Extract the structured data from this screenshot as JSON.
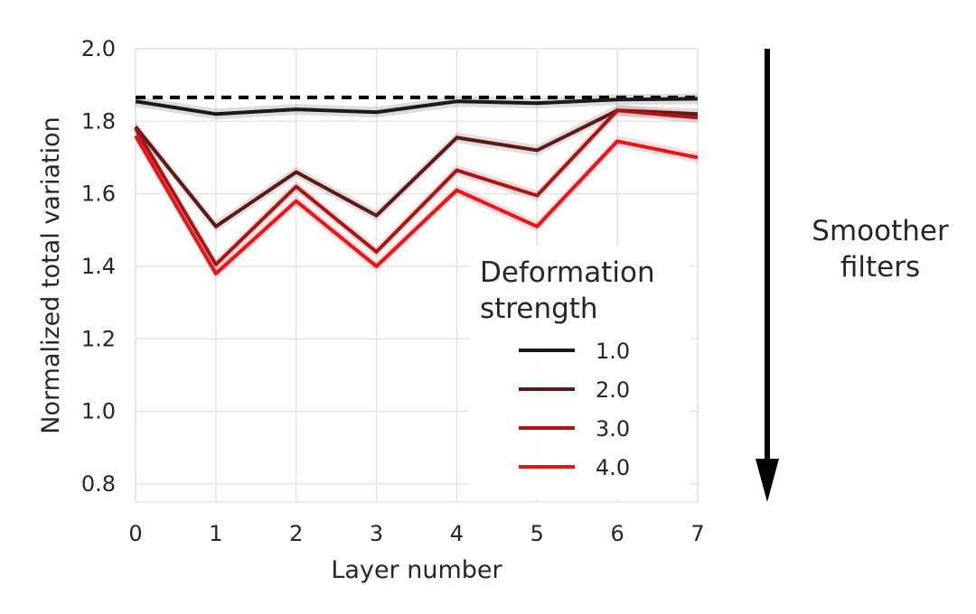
{
  "chart_data": {
    "type": "line",
    "xlabel": "Layer number",
    "ylabel": "Normalized total variation",
    "xlim": [
      0,
      7
    ],
    "ylim": [
      0.75,
      2.0
    ],
    "x_ticks": [
      "0",
      "1",
      "2",
      "3",
      "4",
      "5",
      "6",
      "7"
    ],
    "y_ticks": [
      "0.8",
      "1.0",
      "1.2",
      "1.4",
      "1.6",
      "1.8",
      "2.0"
    ],
    "x": [
      0,
      1,
      2,
      3,
      4,
      5,
      6,
      7
    ],
    "grid": true,
    "legend": {
      "title_lines": [
        "Deformation",
        "strength"
      ],
      "position": "lower-right"
    },
    "reference_line": {
      "y": 1.866,
      "style": "dashed",
      "color": "#000000"
    },
    "series": [
      {
        "name": "1.0",
        "color": "#1a1a1a",
        "values": [
          1.855,
          1.82,
          1.833,
          1.825,
          1.855,
          1.85,
          1.86,
          1.862
        ]
      },
      {
        "name": "2.0",
        "color": "#5a1a1a",
        "values": [
          1.785,
          1.51,
          1.66,
          1.54,
          1.755,
          1.72,
          1.83,
          1.82
        ]
      },
      {
        "name": "3.0",
        "color": "#aa1414",
        "values": [
          1.78,
          1.405,
          1.62,
          1.44,
          1.665,
          1.595,
          1.83,
          1.81
        ]
      },
      {
        "name": "4.0",
        "color": "#e8141a",
        "values": [
          1.76,
          1.38,
          1.58,
          1.4,
          1.61,
          1.51,
          1.745,
          1.7
        ]
      }
    ]
  },
  "annotation": {
    "arrow_color": "#000000",
    "text_lines": [
      "Smoother",
      "filters"
    ]
  }
}
